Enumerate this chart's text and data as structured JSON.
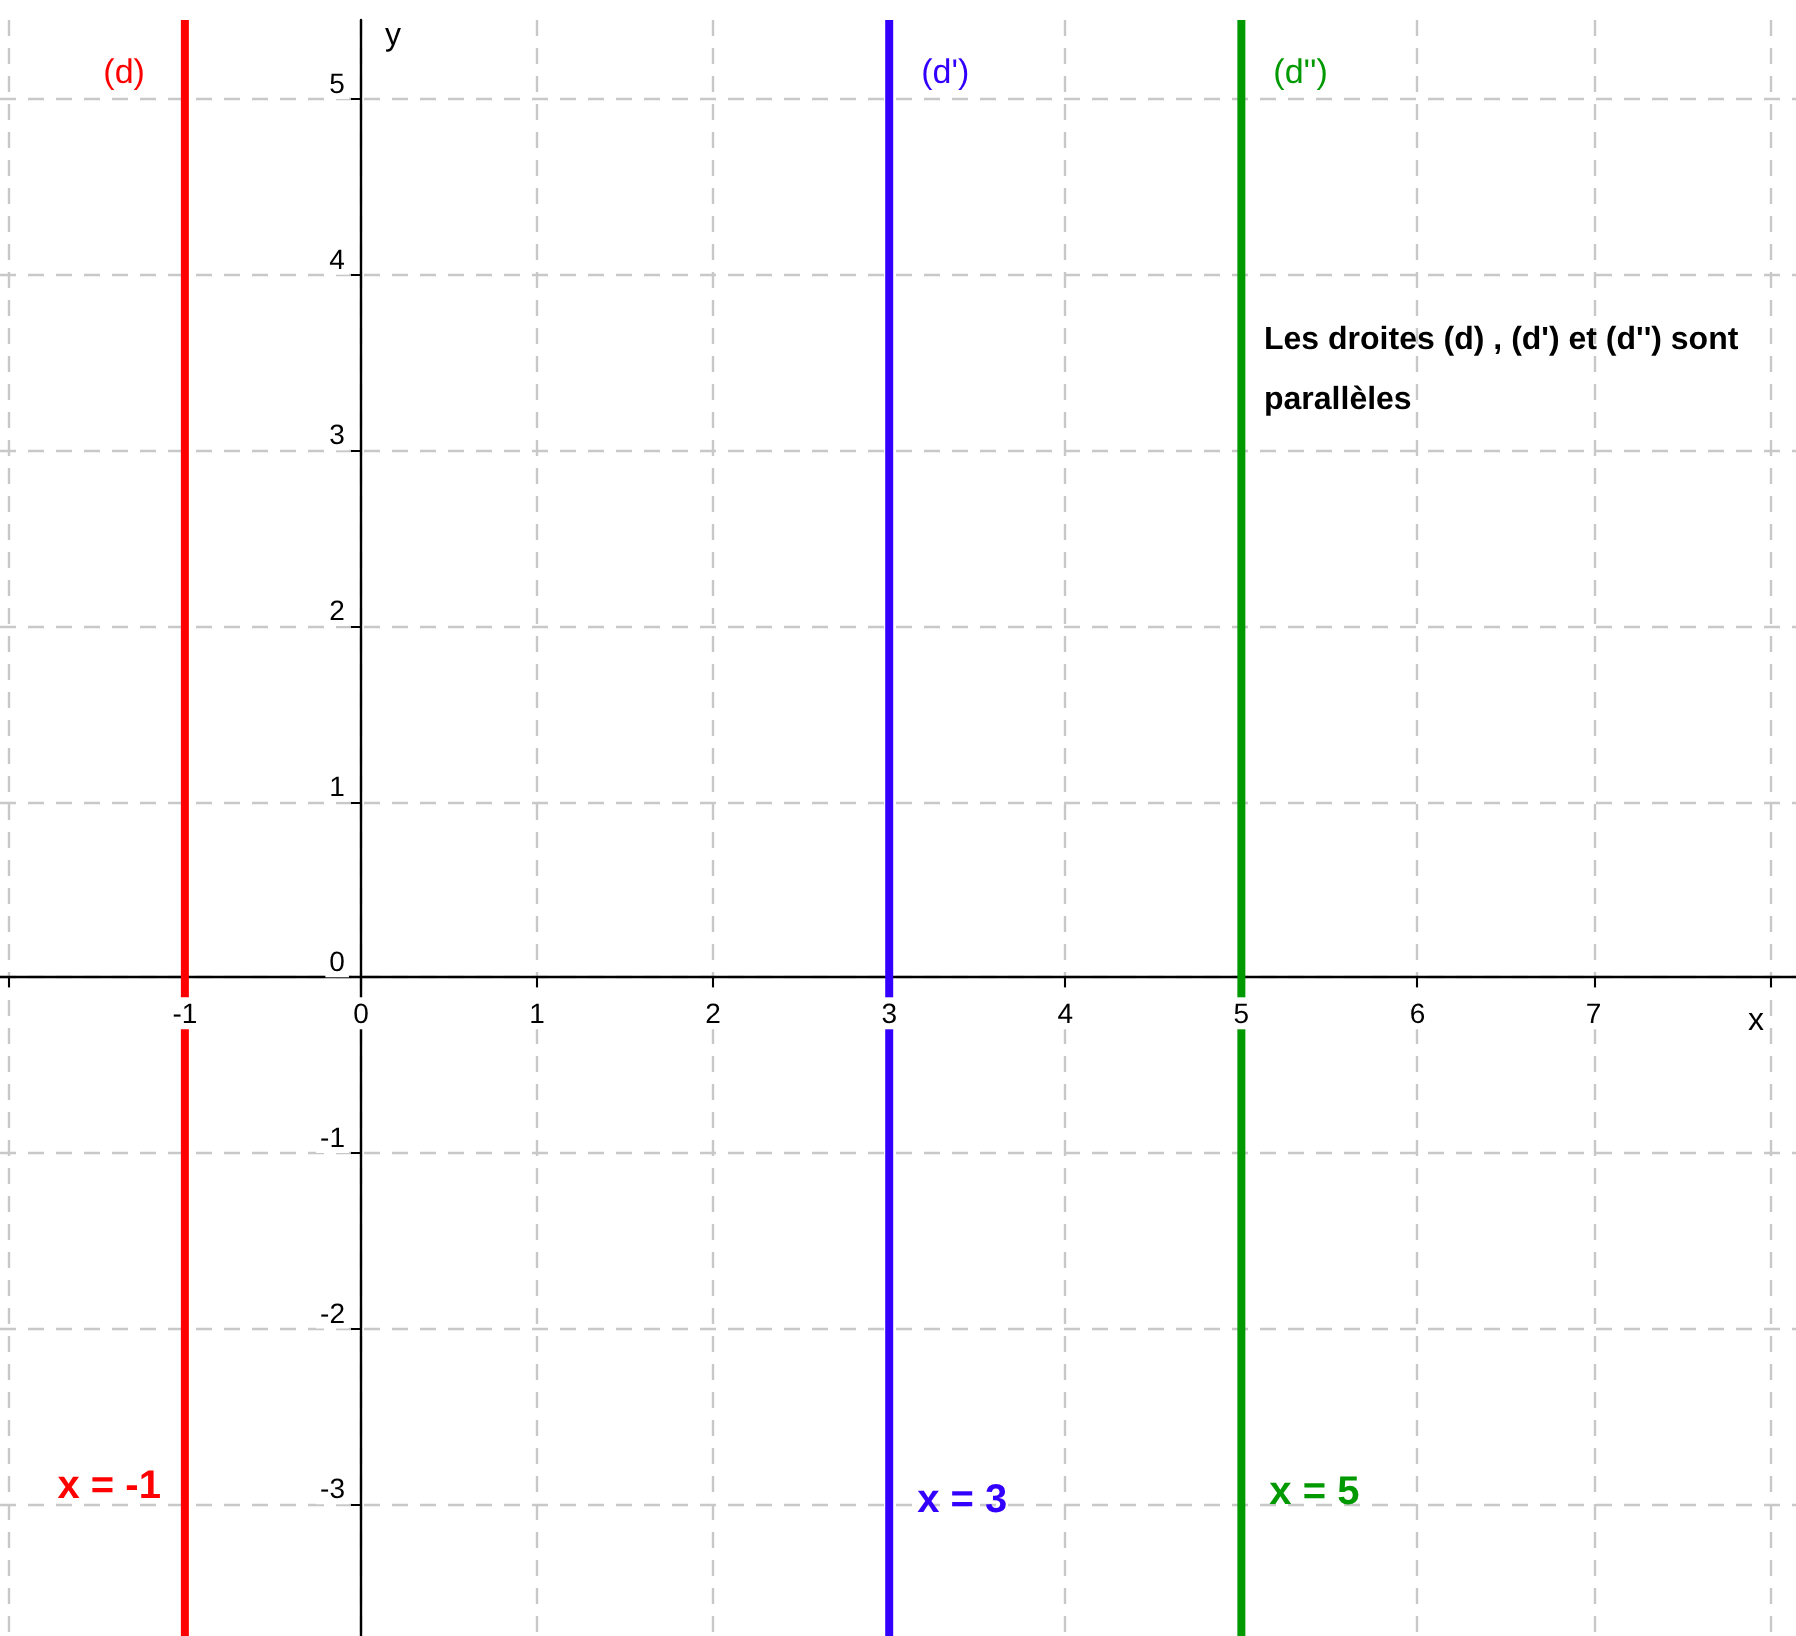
{
  "chart_data": {
    "type": "line",
    "xlabel": "x",
    "ylabel": "y",
    "xlim": [
      -2.05,
      8.15
    ],
    "ylim": [
      -3.75,
      5.45
    ],
    "xticks": [
      {
        "value": -2,
        "label": null
      },
      -1,
      0,
      1,
      2,
      3,
      4,
      5,
      6,
      7,
      {
        "value": 8,
        "label": null
      }
    ],
    "yticks": [
      -3,
      -2,
      -1,
      0,
      1,
      2,
      3,
      4,
      5
    ],
    "grid": true,
    "legend": false,
    "marker": "none",
    "line_style": "solid",
    "series": [
      {
        "name": "(d)",
        "color": "#ff0000",
        "x": [
          -1,
          -1
        ],
        "values": [
          -3.75,
          5.45
        ]
      },
      {
        "name": "(d')",
        "color": "#3300ff",
        "x": [
          3,
          3
        ],
        "values": [
          -3.75,
          5.45
        ]
      },
      {
        "name": "(d'')",
        "color": "#009900",
        "x": [
          5,
          5
        ],
        "values": [
          -3.75,
          5.45
        ]
      }
    ],
    "annotations": [
      "x = -1",
      "x = 3",
      "x = 5",
      "Les droites (d) , (d') et (d'') sont parallèles"
    ]
  }
}
